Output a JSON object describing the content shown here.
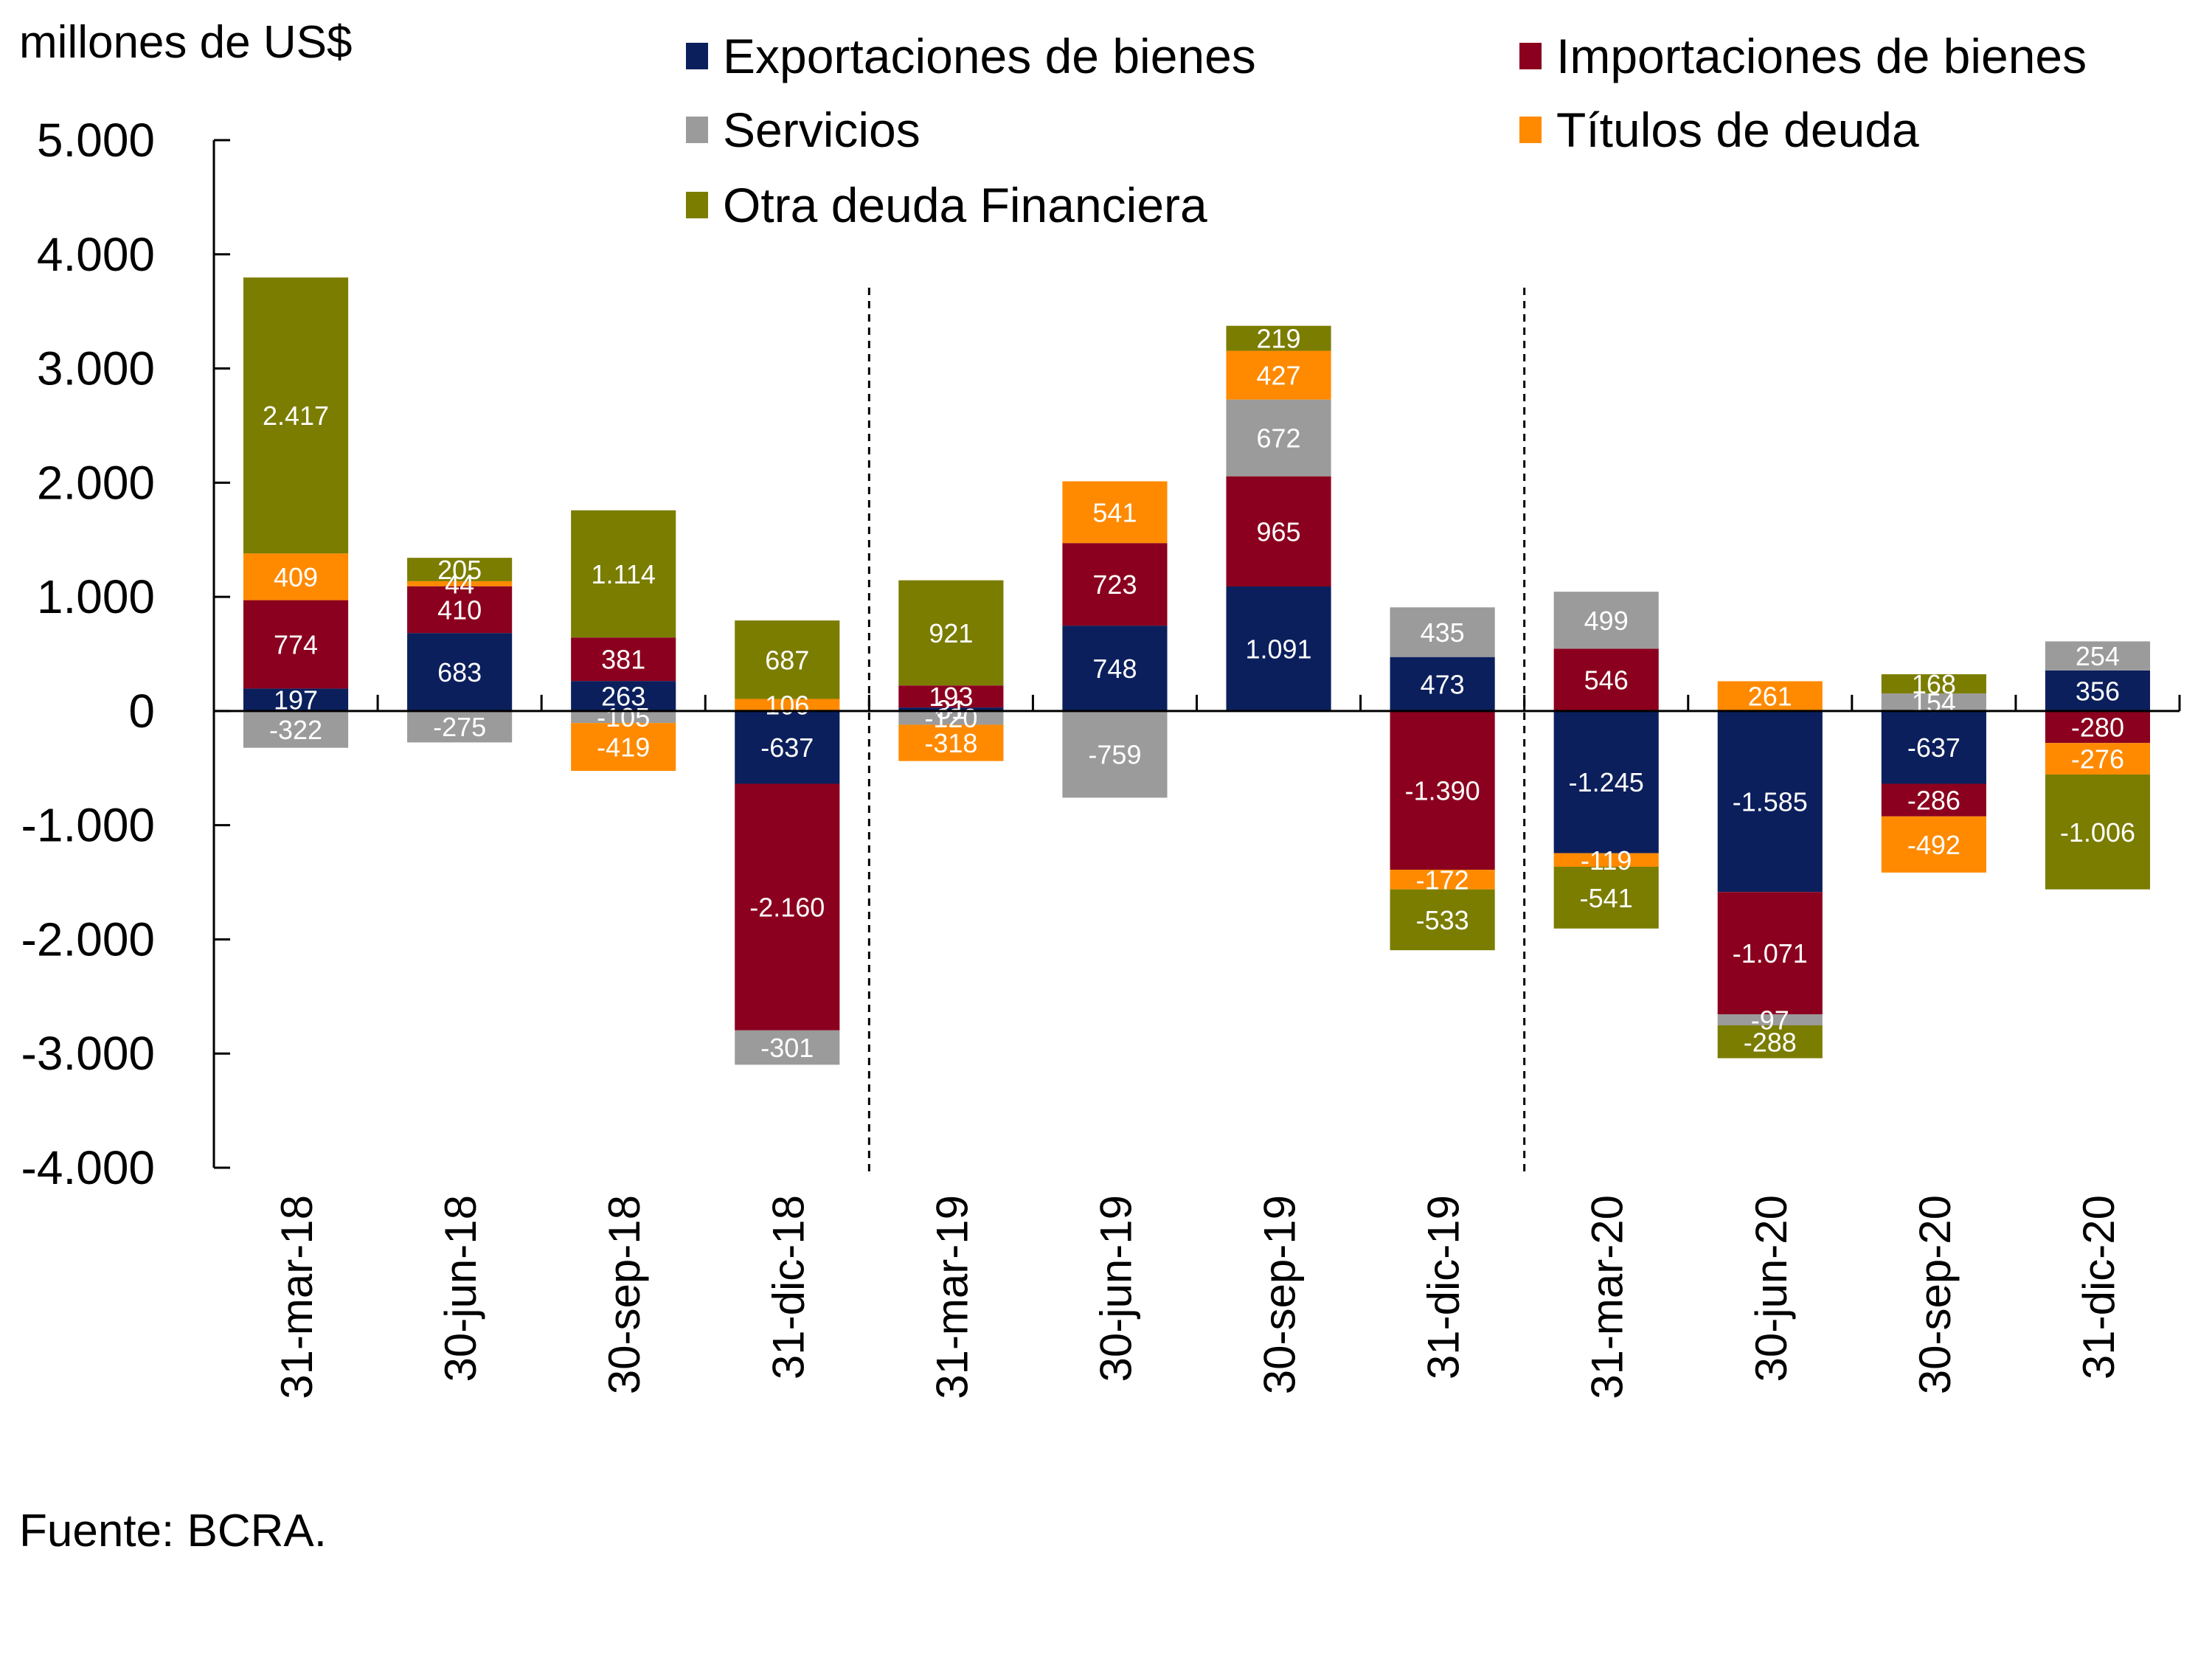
{
  "unit_label": "millones de US$",
  "source": "Fuente: BCRA.",
  "legend": [
    {
      "label": "Exportaciones de bienes",
      "color": "#0b1f5c"
    },
    {
      "label": "Importaciones de bienes",
      "color": "#8b001e"
    },
    {
      "label": "Servicios",
      "color": "#9b9b9b"
    },
    {
      "label": "Títulos de deuda",
      "color": "#ff8a00"
    },
    {
      "label": "Otra deuda Financiera",
      "color": "#7b7d00"
    }
  ],
  "chart_data": {
    "type": "bar",
    "stacked": true,
    "title": "",
    "xlabel": "",
    "ylabel": "millones de US$",
    "ylim": [
      -4000,
      5000
    ],
    "yticks": [
      5000,
      4000,
      3000,
      2000,
      1000,
      0,
      -1000,
      -2000,
      -3000,
      -4000
    ],
    "ytick_labels": [
      "5.000",
      "4.000",
      "3.000",
      "2.000",
      "1.000",
      "0",
      "-1.000",
      "-2.000",
      "-3.000",
      "-4.000"
    ],
    "grid": false,
    "legend_position": "top-right",
    "separators_after_index": [
      3,
      7
    ],
    "categories": [
      "31-mar-18",
      "30-jun-18",
      "30-sep-18",
      "31-dic-18",
      "31-mar-19",
      "30-jun-19",
      "30-sep-19",
      "31-dic-19",
      "31-mar-20",
      "30-jun-20",
      "30-sep-20",
      "31-dic-20"
    ],
    "series": [
      {
        "name": "Exportaciones de bienes",
        "color": "#0b1f5c",
        "values": [
          197,
          683,
          263,
          -637,
          31,
          748,
          1091,
          473,
          -1245,
          -1585,
          -637,
          356
        ],
        "labels": [
          "197",
          "683",
          "263",
          "-637",
          "31",
          "748",
          "1.091",
          "473",
          "-1.245",
          "-1.585",
          "-637",
          "356"
        ]
      },
      {
        "name": "Importaciones de bienes",
        "color": "#8b001e",
        "values": [
          774,
          410,
          381,
          -2160,
          193,
          723,
          965,
          -1390,
          546,
          -1071,
          -286,
          -280
        ],
        "labels": [
          "774",
          "410",
          "381",
          "-2.160",
          "193",
          "723",
          "965",
          "-1.390",
          "546",
          "-1.071",
          "-286",
          "-280"
        ]
      },
      {
        "name": "Servicios",
        "color": "#9b9b9b",
        "values": [
          -322,
          -275,
          -105,
          -301,
          -120,
          -759,
          672,
          435,
          499,
          -97,
          154,
          254
        ],
        "labels": [
          "-322",
          "-275",
          "-105",
          "-301",
          "-120",
          "-759",
          "672",
          "435",
          "499",
          "-97",
          "154",
          "254"
        ]
      },
      {
        "name": "Títulos de deuda",
        "color": "#ff8a00",
        "values": [
          409,
          44,
          -419,
          106,
          -318,
          541,
          427,
          -172,
          -119,
          261,
          -492,
          -276
        ],
        "labels": [
          "409",
          "44",
          "-419",
          "106",
          "-318",
          "541",
          "427",
          "-172",
          "-119",
          "261",
          "-492",
          "-276"
        ]
      },
      {
        "name": "Otra deuda Financiera",
        "color": "#7b7d00",
        "values": [
          2417,
          205,
          1114,
          687,
          921,
          null,
          219,
          -533,
          -541,
          -288,
          168,
          -1006
        ],
        "labels": [
          "2.417",
          "205",
          "1.114",
          "687",
          "921",
          "",
          "219",
          "-533",
          "-541",
          "-288",
          "168",
          "-1.006"
        ]
      }
    ]
  }
}
